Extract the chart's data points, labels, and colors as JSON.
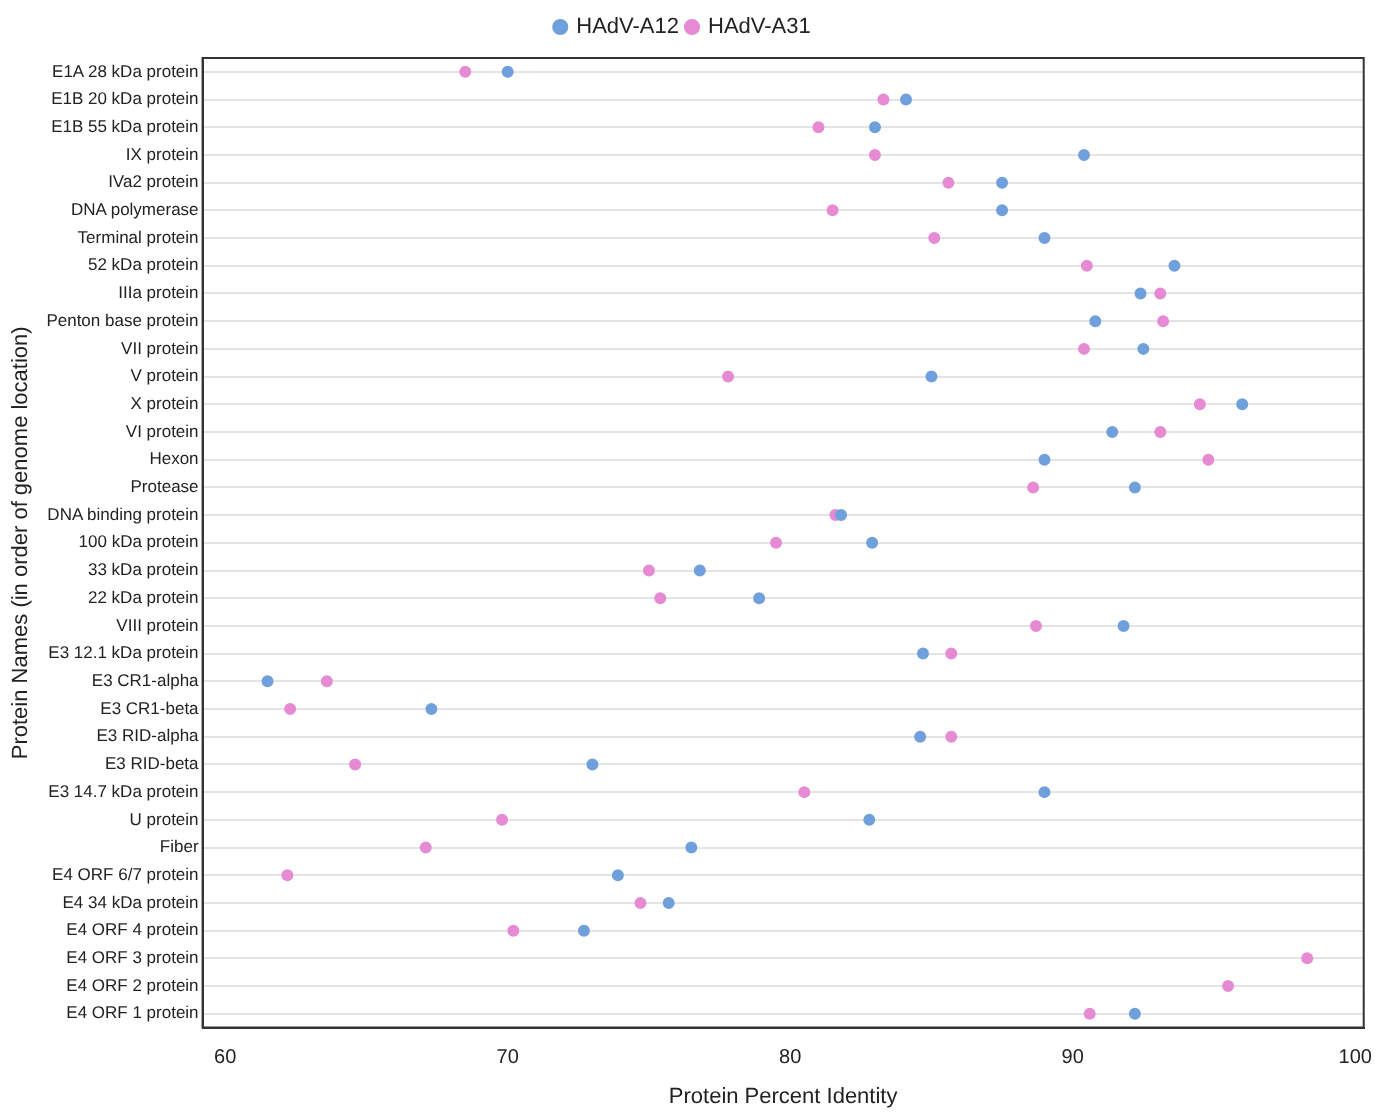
{
  "chart_data": {
    "type": "scatter",
    "xlabel": "Protein Percent Identity",
    "ylabel": "Protein Names (in order of genome location)",
    "categories": [
      "E1A 28 kDa protein",
      "E1B 20 kDa protein",
      "E1B 55 kDa protein",
      "IX protein",
      "IVa2 protein",
      "DNA polymerase",
      "Terminal protein",
      "52 kDa protein",
      "IIIa protein",
      "Penton base protein",
      "VII protein",
      "V protein",
      "X protein",
      "VI protein",
      "Hexon",
      "Protease",
      "DNA binding protein",
      "100 kDa protein",
      "33 kDa protein",
      "22 kDa protein",
      "VIII protein",
      "E3 12.1 kDa protein",
      "E3 CR1-alpha",
      "E3 CR1-beta",
      "E3 RID-alpha",
      "E3 RID-beta",
      "E3 14.7 kDa protein",
      "U protein",
      "Fiber",
      "E4 ORF 6/7 protein",
      "E4 34 kDa protein",
      "E4 ORF 4 protein",
      "E4 ORF 3 protein",
      "E4 ORF 2 protein",
      "E4 ORF 1 protein"
    ],
    "series": [
      {
        "name": "HAdV-A12",
        "color": "#6fa0dc",
        "values": [
          70,
          84.1,
          83,
          90.4,
          87.5,
          87.5,
          89,
          93.6,
          92.4,
          90.8,
          92.5,
          85,
          96,
          91.4,
          89,
          92.2,
          81.8,
          82.9,
          76.8,
          78.9,
          91.8,
          84.7,
          61.5,
          67.3,
          84.6,
          73,
          89,
          82.8,
          76.5,
          73.9,
          75.7,
          72.7,
          null,
          null,
          92.2
        ]
      },
      {
        "name": "HAdV-A31",
        "color": "#e68ad4",
        "values": [
          68.5,
          83.3,
          81,
          83,
          85.6,
          81.5,
          85.1,
          90.5,
          93.1,
          93.2,
          90.4,
          77.8,
          94.5,
          93.1,
          94.8,
          88.6,
          81.6,
          79.5,
          75,
          75.4,
          88.7,
          85.7,
          63.6,
          62.3,
          85.7,
          64.6,
          80.5,
          69.8,
          67.1,
          62.2,
          74.7,
          70.2,
          98.3,
          95.5,
          90.6
        ]
      }
    ],
    "orientation": "horizontal",
    "xlim": [
      59.2,
      100.3
    ],
    "xticks": [
      60,
      70,
      80,
      90,
      100
    ],
    "grid": "y",
    "legend": "top",
    "marker": "circle"
  }
}
